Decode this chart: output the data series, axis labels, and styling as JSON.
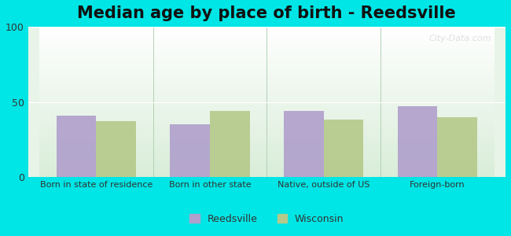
{
  "title": "Median age by place of birth - Reedsville",
  "categories": [
    "Born in state of residence",
    "Born in other state",
    "Native, outside of US",
    "Foreign-born"
  ],
  "reedsville_values": [
    41,
    35,
    44,
    47
  ],
  "wisconsin_values": [
    37,
    44,
    38,
    40
  ],
  "reedsville_color": "#b09fcc",
  "wisconsin_color": "#b5c98a",
  "ylim": [
    0,
    100
  ],
  "yticks": [
    0,
    50,
    100
  ],
  "bar_width": 0.35,
  "background_color": "#00e5e5",
  "plot_bg_top": "#f0f8f0",
  "plot_bg_bottom": "#e0f8f0",
  "title_fontsize": 15,
  "legend_labels": [
    "Reedsville",
    "Wisconsin"
  ],
  "watermark": "City-Data.com"
}
